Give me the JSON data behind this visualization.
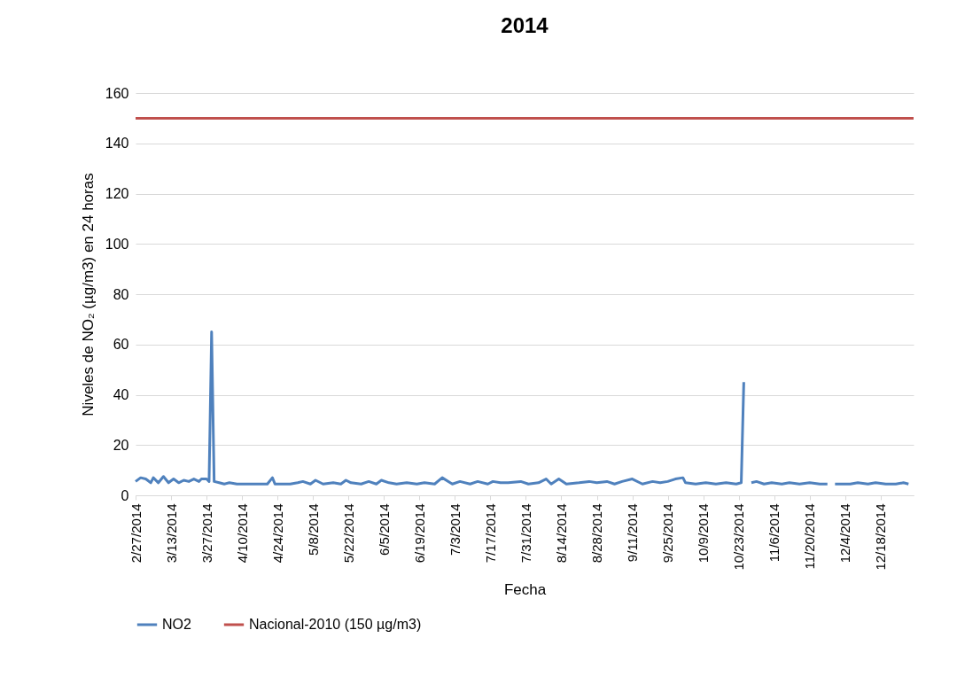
{
  "chart_data": {
    "type": "line",
    "title": "2014",
    "xlabel": "Fecha",
    "ylabel": "Niveles de NO₂ (µg/m3) en 24 horas",
    "x": [
      "2014-02-27",
      "2014-03-01",
      "2014-03-03",
      "2014-03-05",
      "2014-03-06",
      "2014-03-08",
      "2014-03-10",
      "2014-03-12",
      "2014-03-14",
      "2014-03-16",
      "2014-03-18",
      "2014-03-20",
      "2014-03-22",
      "2014-03-24",
      "2014-03-25",
      "2014-03-27",
      "2014-03-28",
      "2014-03-29",
      "2014-03-30",
      "2014-04-01",
      "2014-04-03",
      "2014-04-05",
      "2014-04-08",
      "2014-04-11",
      "2014-04-14",
      "2014-04-17",
      "2014-04-20",
      "2014-04-22",
      "2014-04-23",
      "2014-04-25",
      "2014-04-29",
      "2014-05-02",
      "2014-05-04",
      "2014-05-07",
      "2014-05-09",
      "2014-05-12",
      "2014-05-16",
      "2014-05-19",
      "2014-05-21",
      "2014-05-23",
      "2014-05-27",
      "2014-05-30",
      "2014-06-02",
      "2014-06-04",
      "2014-06-07",
      "2014-06-10",
      "2014-06-14",
      "2014-06-18",
      "2014-06-21",
      "2014-06-25",
      "2014-06-28",
      "2014-07-02",
      "2014-07-05",
      "2014-07-09",
      "2014-07-12",
      "2014-07-16",
      "2014-07-18",
      "2014-07-21",
      "2014-07-24",
      "2014-07-29",
      "2014-08-01",
      "2014-08-05",
      "2014-08-08",
      "2014-08-10",
      "2014-08-13",
      "2014-08-16",
      "2014-08-21",
      "2014-08-25",
      "2014-08-28",
      "2014-09-01",
      "2014-09-04",
      "2014-09-07",
      "2014-09-11",
      "2014-09-15",
      "2014-09-19",
      "2014-09-22",
      "2014-09-25",
      "2014-09-28",
      "2014-10-01",
      "2014-10-02",
      "2014-10-06",
      "2014-10-10",
      "2014-10-14",
      "2014-10-18",
      "2014-10-22",
      "2014-10-24",
      "2014-10-25",
      "2014-10-26",
      "2014-10-28",
      "2014-10-30",
      "2014-11-02",
      "2014-11-05",
      "2014-11-09",
      "2014-11-12",
      "2014-11-16",
      "2014-11-20",
      "2014-11-24",
      "2014-11-27",
      "2014-11-28",
      "2014-11-30",
      "2014-12-03",
      "2014-12-06",
      "2014-12-09",
      "2014-12-13",
      "2014-12-16",
      "2014-12-20",
      "2014-12-24",
      "2014-12-27",
      "2014-12-29"
    ],
    "series": [
      {
        "name": "NO2",
        "color": "#4f81bd",
        "values": [
          5.5,
          7,
          6.5,
          5,
          7,
          5,
          7.5,
          5,
          6.5,
          5,
          6,
          5.5,
          6.5,
          5.5,
          6.5,
          6.5,
          5.5,
          65,
          5.5,
          5,
          4.5,
          5,
          4.5,
          4.5,
          4.5,
          4.5,
          4.5,
          7,
          4.5,
          4.5,
          4.5,
          5,
          5.5,
          4.5,
          6,
          4.5,
          5,
          4.5,
          6,
          5,
          4.5,
          5.5,
          4.5,
          6,
          5,
          4.5,
          5,
          4.5,
          5,
          4.5,
          7,
          4.5,
          5.5,
          4.5,
          5.5,
          4.5,
          5.5,
          5,
          5,
          5.5,
          4.5,
          5,
          6.5,
          4.5,
          6.5,
          4.5,
          5,
          5.5,
          5,
          5.5,
          4.5,
          5.5,
          6.5,
          4.5,
          5.5,
          5,
          5.5,
          6.5,
          7,
          5,
          4.5,
          5,
          4.5,
          5,
          4.5,
          5,
          45,
          null,
          5,
          5.5,
          4.5,
          5,
          4.5,
          5,
          4.5,
          5,
          4.5,
          4.5,
          null,
          4.5,
          4.5,
          4.5,
          5,
          4.5,
          5,
          4.5,
          4.5,
          5,
          4.5
        ]
      }
    ],
    "xlim": [
      "2014-02-27",
      "2014-12-31"
    ],
    "xticks": [
      {
        "value": "2014-02-27",
        "label": "2/27/2014"
      },
      {
        "value": "2014-03-13",
        "label": "3/13/2014"
      },
      {
        "value": "2014-03-27",
        "label": "3/27/2014"
      },
      {
        "value": "2014-04-10",
        "label": "4/10/2014"
      },
      {
        "value": "2014-04-24",
        "label": "4/24/2014"
      },
      {
        "value": "2014-05-08",
        "label": "5/8/2014"
      },
      {
        "value": "2014-05-22",
        "label": "5/22/2014"
      },
      {
        "value": "2014-06-05",
        "label": "6/5/2014"
      },
      {
        "value": "2014-06-19",
        "label": "6/19/2014"
      },
      {
        "value": "2014-07-03",
        "label": "7/3/2014"
      },
      {
        "value": "2014-07-17",
        "label": "7/17/2014"
      },
      {
        "value": "2014-07-31",
        "label": "7/31/2014"
      },
      {
        "value": "2014-08-14",
        "label": "8/14/2014"
      },
      {
        "value": "2014-08-28",
        "label": "8/28/2014"
      },
      {
        "value": "2014-09-11",
        "label": "9/11/2014"
      },
      {
        "value": "2014-09-25",
        "label": "9/25/2014"
      },
      {
        "value": "2014-10-09",
        "label": "10/9/2014"
      },
      {
        "value": "2014-10-23",
        "label": "10/23/2014"
      },
      {
        "value": "2014-11-06",
        "label": "11/6/2014"
      },
      {
        "value": "2014-11-20",
        "label": "11/20/2014"
      },
      {
        "value": "2014-12-04",
        "label": "12/4/2014"
      },
      {
        "value": "2014-12-18",
        "label": "12/18/2014"
      }
    ],
    "ylim": [
      0,
      160
    ],
    "yticks": [
      0,
      20,
      40,
      60,
      80,
      100,
      120,
      140,
      160
    ],
    "ref_lines": [
      {
        "axis": "y",
        "value": 150,
        "label": "Nacional-2010 (150 µg/m3)",
        "color": "#c0504d"
      }
    ],
    "grid": "y",
    "legend": "bottom",
    "marker": "none",
    "line_style": "solid"
  }
}
